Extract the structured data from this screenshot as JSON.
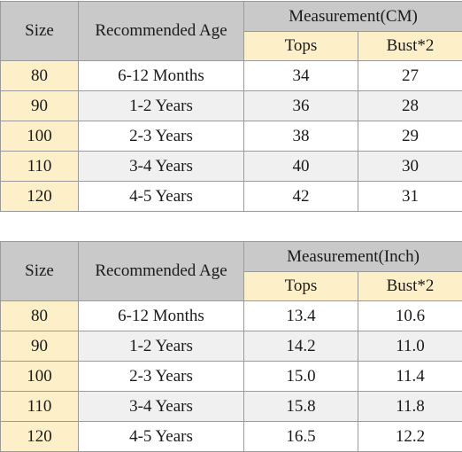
{
  "tables": [
    {
      "headers": {
        "size": "Size",
        "age": "Recommended Age",
        "measurement": "Measurement(CM)",
        "tops": "Tops",
        "bust": "Bust*2"
      },
      "rows": [
        [
          "80",
          "6-12 Months",
          "34",
          "27"
        ],
        [
          "90",
          "1-2 Years",
          "36",
          "28"
        ],
        [
          "100",
          "2-3 Years",
          "38",
          "29"
        ],
        [
          "110",
          "3-4 Years",
          "40",
          "30"
        ],
        [
          "120",
          "4-5 Years",
          "42",
          "31"
        ]
      ]
    },
    {
      "headers": {
        "size": "Size",
        "age": "Recommended Age",
        "measurement": "Measurement(Inch)",
        "tops": "Tops",
        "bust": "Bust*2"
      },
      "rows": [
        [
          "80",
          "6-12 Months",
          "13.4",
          "10.6"
        ],
        [
          "90",
          "1-2 Years",
          "14.2",
          "11.0"
        ],
        [
          "100",
          "2-3 Years",
          "15.0",
          "11.4"
        ],
        [
          "110",
          "3-4 Years",
          "15.8",
          "11.8"
        ],
        [
          "120",
          "4-5 Years",
          "16.5",
          "12.2"
        ]
      ]
    }
  ],
  "colors": {
    "header_gray": "#c9c9c9",
    "highlight_yellow": "#fdf0c8",
    "row_alt": "#f0f0f0",
    "border": "#9a9a9a"
  }
}
